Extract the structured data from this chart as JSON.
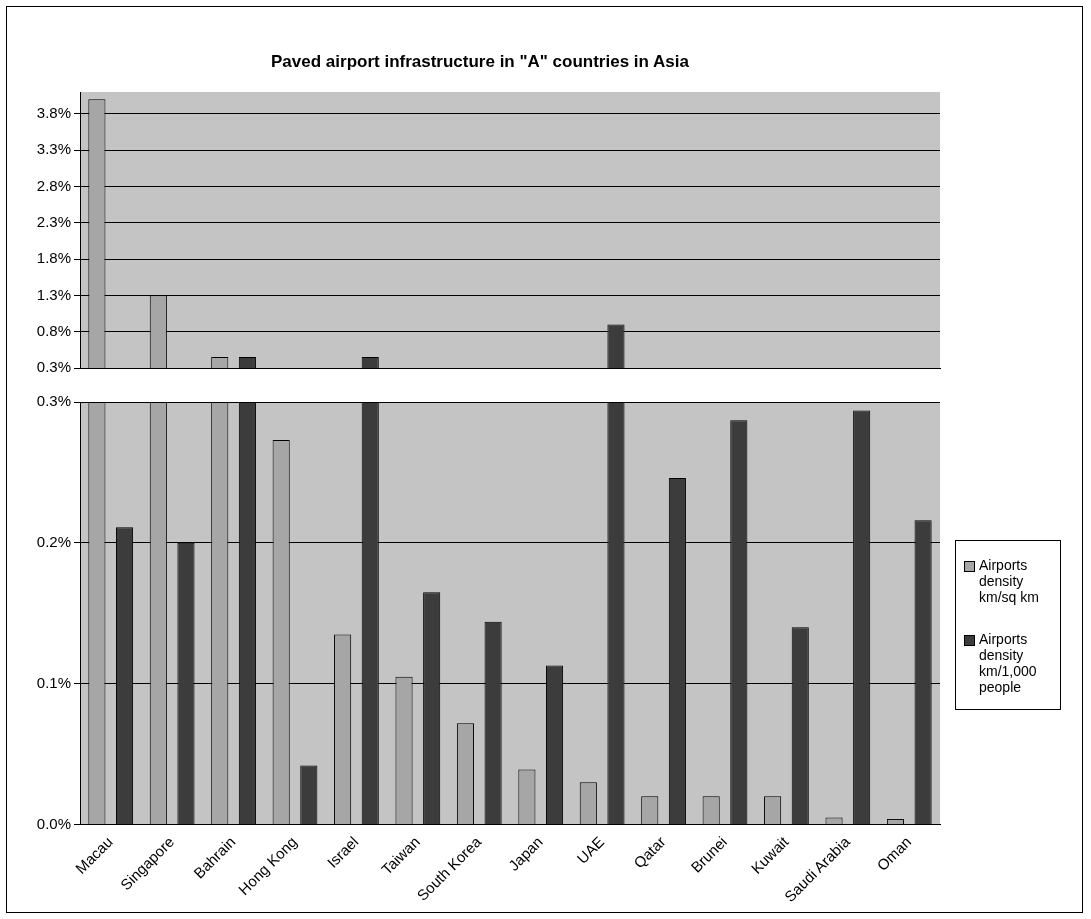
{
  "chart_data": [
    {
      "type": "bar",
      "title": "Paved airport infrastructure in \"A\" countries in Asia",
      "categories": [
        null,
        null,
        null,
        null,
        null,
        null,
        null,
        null,
        null,
        null,
        null,
        null,
        null,
        null
      ],
      "series": [
        {
          "color": "#a6a6a6",
          "values": [
            4.0,
            1.3,
            0.45,
            null,
            null,
            null,
            null,
            null,
            null,
            null,
            null,
            null,
            null,
            null
          ]
        },
        {
          "color": "#3c3c3c",
          "values": [
            null,
            null,
            0.45,
            null,
            0.45,
            null,
            null,
            null,
            0.9,
            null,
            null,
            null,
            null,
            null
          ]
        }
      ],
      "ylim": [
        0.3,
        4.1
      ],
      "yticks": [
        {
          "value": 0.3,
          "label": "0.3%"
        },
        {
          "value": 0.8,
          "label": "0.8%"
        },
        {
          "value": 1.3,
          "label": "1.3%"
        },
        {
          "value": 1.8,
          "label": "1.8%"
        },
        {
          "value": 2.3,
          "label": "2.3%"
        },
        {
          "value": 2.8,
          "label": "2.8%"
        },
        {
          "value": 3.3,
          "label": "3.3%"
        },
        {
          "value": 3.8,
          "label": "3.8%"
        }
      ],
      "grid": "y",
      "legend": false,
      "tick_labels": "y"
    },
    {
      "type": "bar",
      "categories": [
        "Macau",
        "Singapore",
        "Bahrain",
        "Hong Kong",
        "Israel",
        "Taiwan",
        "South Korea",
        "Japan",
        "UAE",
        "Qatar",
        "Brunei",
        "Kuwait",
        "Saudi Arabia",
        "Oman"
      ],
      "series": [
        {
          "name": "Airports density km/sq km",
          "color": "#a6a6a6",
          "values": [
            0.3,
            0.3,
            0.3,
            0.273,
            0.135,
            0.105,
            0.072,
            0.039,
            0.03,
            0.02,
            0.02,
            0.02,
            0.005,
            0.004
          ]
        },
        {
          "name": "Airports density km/1,000 people",
          "color": "#3c3c3c",
          "values": [
            0.211,
            0.2,
            0.3,
            0.042,
            0.3,
            0.165,
            0.144,
            0.113,
            0.3,
            0.246,
            0.287,
            0.14,
            0.294,
            0.216
          ]
        }
      ],
      "ylim": [
        0,
        0.3
      ],
      "yticks": [
        {
          "value": 0,
          "label": "0.0%"
        },
        {
          "value": 0.1,
          "label": "0.1%"
        },
        {
          "value": 0.2,
          "label": "0.2%"
        },
        {
          "value": 0.3,
          "label": "0.3%"
        }
      ],
      "grid": "y",
      "legend": "right"
    }
  ]
}
